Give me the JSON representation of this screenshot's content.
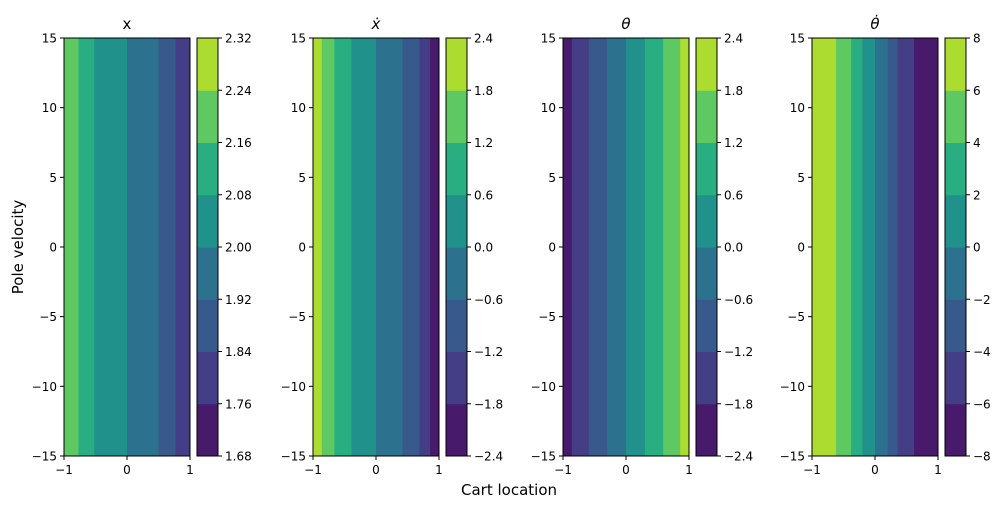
{
  "figure": {
    "xlabel": "Cart location",
    "ylabel": "Pole velocity"
  },
  "chart_data": [
    {
      "type": "heatmap",
      "title": "x",
      "title_style": "plain",
      "xlim": [
        -1,
        1
      ],
      "ylim": [
        -15,
        15
      ],
      "x_ticks": [
        -1,
        0,
        1
      ],
      "y_ticks": [
        -15,
        -10,
        -5,
        0,
        5,
        10,
        15
      ],
      "colorbar_levels": [
        1.68,
        1.76,
        1.84,
        1.92,
        2.0,
        2.08,
        2.16,
        2.24,
        2.32
      ],
      "colorbar_labels": [
        "1.68",
        "1.76",
        "1.84",
        "1.92",
        "2.00",
        "2.08",
        "2.16",
        "2.24",
        "2.32"
      ],
      "bands": [
        {
          "x0": -1.0,
          "x1": -0.77,
          "level": 6
        },
        {
          "x0": -0.77,
          "x1": -0.52,
          "level": 5
        },
        {
          "x0": -0.52,
          "x1": 0.0,
          "level": 4
        },
        {
          "x0": 0.0,
          "x1": 0.5,
          "level": 3
        },
        {
          "x0": 0.5,
          "x1": 0.77,
          "level": 2
        },
        {
          "x0": 0.77,
          "x1": 1.0,
          "level": 1
        }
      ]
    },
    {
      "type": "heatmap",
      "title": "ẋ",
      "title_style": "math",
      "xlim": [
        -1,
        1
      ],
      "ylim": [
        -15,
        15
      ],
      "x_ticks": [
        -1,
        0,
        1
      ],
      "y_ticks": [
        -15,
        -10,
        -5,
        0,
        5,
        10,
        15
      ],
      "colorbar_levels": [
        -2.4,
        -1.8,
        -1.2,
        -0.6,
        0.0,
        0.6,
        1.2,
        1.8,
        2.4
      ],
      "colorbar_labels": [
        "−2.4",
        "−1.8",
        "−1.2",
        "−0.6",
        "0.0",
        "0.6",
        "1.2",
        "1.8",
        "2.4"
      ],
      "bands": [
        {
          "x0": -1.0,
          "x1": -0.86,
          "level": 7
        },
        {
          "x0": -0.86,
          "x1": -0.66,
          "level": 6
        },
        {
          "x0": -0.66,
          "x1": -0.39,
          "level": 5
        },
        {
          "x0": -0.39,
          "x1": 0.0,
          "level": 4
        },
        {
          "x0": 0.0,
          "x1": 0.42,
          "level": 3
        },
        {
          "x0": 0.42,
          "x1": 0.69,
          "level": 2
        },
        {
          "x0": 0.69,
          "x1": 0.86,
          "level": 1
        },
        {
          "x0": 0.86,
          "x1": 1.0,
          "level": 0
        }
      ]
    },
    {
      "type": "heatmap",
      "title": "θ",
      "title_style": "math",
      "xlim": [
        -1,
        1
      ],
      "ylim": [
        -15,
        15
      ],
      "x_ticks": [
        -1,
        0,
        1
      ],
      "y_ticks": [
        -15,
        -10,
        -5,
        0,
        5,
        10,
        15
      ],
      "colorbar_levels": [
        -2.4,
        -1.8,
        -1.2,
        -0.6,
        0.0,
        0.6,
        1.2,
        1.8,
        2.4
      ],
      "colorbar_labels": [
        "−2.4",
        "−1.8",
        "−1.2",
        "−0.6",
        "0.0",
        "0.6",
        "1.2",
        "1.8",
        "2.4"
      ],
      "bands": [
        {
          "x0": -1.0,
          "x1": -0.86,
          "level": 0
        },
        {
          "x0": -0.86,
          "x1": -0.59,
          "level": 1
        },
        {
          "x0": -0.59,
          "x1": -0.3,
          "level": 2
        },
        {
          "x0": -0.3,
          "x1": 0.0,
          "level": 3
        },
        {
          "x0": 0.0,
          "x1": 0.3,
          "level": 4
        },
        {
          "x0": 0.3,
          "x1": 0.59,
          "level": 5
        },
        {
          "x0": 0.59,
          "x1": 0.86,
          "level": 6
        },
        {
          "x0": 0.86,
          "x1": 1.0,
          "level": 7
        }
      ]
    },
    {
      "type": "heatmap",
      "title": "θ̇",
      "title_style": "math",
      "xlim": [
        -1,
        1
      ],
      "ylim": [
        -15,
        15
      ],
      "x_ticks": [
        -1,
        0,
        1
      ],
      "y_ticks": [
        -15,
        -10,
        -5,
        0,
        5,
        10,
        15
      ],
      "colorbar_levels": [
        -8,
        -6,
        -4,
        -2,
        0,
        2,
        4,
        6,
        8
      ],
      "colorbar_labels": [
        "−8",
        "−6",
        "−4",
        "−2",
        "0",
        "2",
        "4",
        "6",
        "8"
      ],
      "bands": [
        {
          "x0": -1.0,
          "x1": -0.62,
          "level": 7
        },
        {
          "x0": -0.62,
          "x1": -0.38,
          "level": 6
        },
        {
          "x0": -0.38,
          "x1": -0.2,
          "level": 5
        },
        {
          "x0": -0.2,
          "x1": 0.0,
          "level": 4
        },
        {
          "x0": 0.0,
          "x1": 0.2,
          "level": 3
        },
        {
          "x0": 0.2,
          "x1": 0.36,
          "level": 2
        },
        {
          "x0": 0.36,
          "x1": 0.62,
          "level": 1
        },
        {
          "x0": 0.62,
          "x1": 1.0,
          "level": 0
        }
      ]
    }
  ],
  "colormap": [
    "#481a6c",
    "#433e85",
    "#38598c",
    "#2c728e",
    "#21918c",
    "#28ae80",
    "#5ec962",
    "#addc30",
    "#dde318"
  ]
}
